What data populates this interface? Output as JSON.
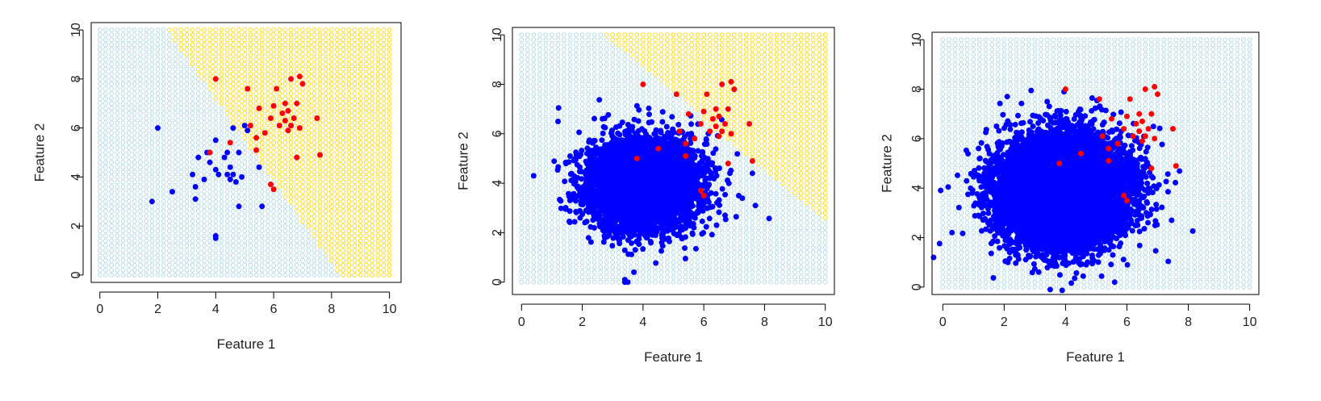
{
  "chart_data": [
    {
      "type": "scatter",
      "xlabel": "Feature 1",
      "ylabel": "Feature 2",
      "xlim": [
        0,
        10
      ],
      "ylim": [
        0,
        10
      ],
      "xticks": [
        "0",
        "2",
        "4",
        "6",
        "8",
        "10"
      ],
      "yticks": [
        "0",
        "2",
        "4",
        "6",
        "8",
        "10"
      ],
      "background_grid": {
        "x_range": [
          0,
          10
        ],
        "y_range": [
          0,
          10
        ],
        "step": 0.2,
        "light_color": "#ADD8E6",
        "dark_color": "#FFD700"
      },
      "decision_boundary": {
        "x_at_y0": 8.3,
        "x_at_y10": 2.3
      },
      "series": [
        {
          "color": "#0000FF",
          "points": [
            [
              2.0,
              6.0
            ],
            [
              1.8,
              3.0
            ],
            [
              2.5,
              3.4
            ],
            [
              3.2,
              4.1
            ],
            [
              3.3,
              3.1
            ],
            [
              3.3,
              3.6
            ],
            [
              3.4,
              4.8
            ],
            [
              3.6,
              3.9
            ],
            [
              3.7,
              5.0
            ],
            [
              3.8,
              4.6
            ],
            [
              4.0,
              5.5
            ],
            [
              4.0,
              4.3
            ],
            [
              4.1,
              4.1
            ],
            [
              4.3,
              4.8
            ],
            [
              4.4,
              4.1
            ],
            [
              4.4,
              5.0
            ],
            [
              4.5,
              3.9
            ],
            [
              4.5,
              4.4
            ],
            [
              4.6,
              4.1
            ],
            [
              4.6,
              6.0
            ],
            [
              4.7,
              3.8
            ],
            [
              4.8,
              5.0
            ],
            [
              4.8,
              2.8
            ],
            [
              4.9,
              4.0
            ],
            [
              5.0,
              6.1
            ],
            [
              5.1,
              5.9
            ],
            [
              5.5,
              4.4
            ],
            [
              5.6,
              2.8
            ],
            [
              4.0,
              1.6
            ],
            [
              4.0,
              1.5
            ]
          ]
        },
        {
          "color": "#FF0000",
          "points": [
            [
              3.8,
              5.0
            ],
            [
              4.0,
              8.0
            ],
            [
              4.5,
              5.4
            ],
            [
              5.1,
              7.6
            ],
            [
              5.2,
              6.1
            ],
            [
              5.4,
              5.6
            ],
            [
              5.4,
              5.1
            ],
            [
              5.5,
              6.8
            ],
            [
              5.7,
              5.8
            ],
            [
              5.9,
              6.4
            ],
            [
              6.0,
              6.9
            ],
            [
              6.1,
              7.6
            ],
            [
              6.2,
              6.1
            ],
            [
              6.3,
              6.6
            ],
            [
              6.4,
              6.3
            ],
            [
              6.4,
              7.0
            ],
            [
              6.5,
              6.7
            ],
            [
              6.5,
              5.9
            ],
            [
              6.6,
              6.1
            ],
            [
              6.6,
              8.0
            ],
            [
              6.7,
              6.4
            ],
            [
              6.8,
              7.0
            ],
            [
              6.9,
              6.0
            ],
            [
              6.9,
              8.1
            ],
            [
              7.0,
              7.8
            ],
            [
              7.5,
              6.4
            ],
            [
              7.6,
              4.9
            ],
            [
              6.8,
              4.8
            ],
            [
              5.9,
              3.7
            ],
            [
              6.0,
              3.5
            ]
          ]
        }
      ]
    },
    {
      "type": "scatter",
      "xlabel": "Feature 1",
      "ylabel": "Feature 2",
      "xlim": [
        0,
        10
      ],
      "ylim": [
        0,
        10
      ],
      "xticks": [
        "0",
        "2",
        "4",
        "6",
        "8",
        "10"
      ],
      "yticks": [
        "0",
        "2",
        "4",
        "6",
        "8",
        "10"
      ],
      "background_grid": {
        "x_range": [
          0,
          10
        ],
        "y_range": [
          0,
          10
        ],
        "step": 0.2,
        "light_color": "#ADD8E6",
        "dark_color": "#FFD700"
      },
      "decision_boundary": {
        "x_at_y0": 12.4,
        "x_at_y10": 2.7
      },
      "series": [
        {
          "color": "#0000FF",
          "cloud": {
            "n": 5000,
            "center": [
              4.0,
              4.0
            ],
            "sd": [
              0.9,
              0.9
            ],
            "seed": 11
          },
          "points": [
            [
              3.4,
              0.1
            ],
            [
              3.7,
              0.4
            ],
            [
              3.4,
              0.0
            ],
            [
              3.5,
              0.0
            ],
            [
              0.4,
              4.3
            ],
            [
              1.2,
              6.5
            ],
            [
              7.6,
              4.4
            ],
            [
              7.7,
              3.1
            ],
            [
              6.7,
              2.7
            ]
          ]
        },
        {
          "color": "#FF0000",
          "points": [
            [
              3.8,
              5.0
            ],
            [
              4.0,
              8.0
            ],
            [
              4.5,
              5.4
            ],
            [
              5.1,
              7.6
            ],
            [
              5.2,
              6.1
            ],
            [
              5.4,
              5.6
            ],
            [
              5.4,
              5.1
            ],
            [
              5.5,
              6.8
            ],
            [
              5.7,
              5.8
            ],
            [
              5.9,
              6.4
            ],
            [
              6.0,
              6.9
            ],
            [
              6.1,
              7.6
            ],
            [
              6.2,
              6.1
            ],
            [
              6.3,
              6.6
            ],
            [
              6.4,
              6.3
            ],
            [
              6.4,
              7.0
            ],
            [
              6.5,
              6.7
            ],
            [
              6.5,
              5.9
            ],
            [
              6.6,
              6.1
            ],
            [
              6.6,
              8.0
            ],
            [
              6.7,
              6.4
            ],
            [
              6.8,
              7.0
            ],
            [
              6.9,
              6.0
            ],
            [
              6.9,
              8.1
            ],
            [
              7.0,
              7.8
            ],
            [
              7.5,
              6.4
            ],
            [
              7.6,
              4.9
            ],
            [
              6.8,
              4.8
            ],
            [
              5.9,
              3.7
            ],
            [
              6.0,
              3.5
            ]
          ]
        }
      ]
    },
    {
      "type": "scatter",
      "xlabel": "Feature 1",
      "ylabel": "Feature 2",
      "xlim": [
        0,
        10
      ],
      "ylim": [
        0,
        10
      ],
      "xticks": [
        "0",
        "2",
        "4",
        "6",
        "8",
        "10"
      ],
      "yticks": [
        "0",
        "2",
        "4",
        "6",
        "8",
        "10"
      ],
      "background_grid": {
        "x_range": [
          0,
          10
        ],
        "y_range": [
          0,
          10
        ],
        "step": 0.2,
        "light_color": "#ADD8E6",
        "dark_color": "#FFD700"
      },
      "decision_boundary": null,
      "series": [
        {
          "color": "#0000FF",
          "cloud": {
            "n": 11000,
            "center": [
              3.9,
              3.9
            ],
            "sd": [
              1.0,
              1.05
            ],
            "seed": 23
          },
          "points": [
            [
              -0.3,
              1.2
            ],
            [
              0.3,
              2.2
            ],
            [
              3.5,
              -0.1
            ],
            [
              2.1,
              7.7
            ],
            [
              5.6,
              0.2
            ]
          ]
        },
        {
          "color": "#FF0000",
          "points": [
            [
              3.8,
              5.0
            ],
            [
              4.0,
              8.0
            ],
            [
              4.5,
              5.4
            ],
            [
              5.1,
              7.6
            ],
            [
              5.2,
              6.1
            ],
            [
              5.4,
              5.6
            ],
            [
              5.4,
              5.1
            ],
            [
              5.5,
              6.8
            ],
            [
              5.7,
              5.8
            ],
            [
              5.9,
              6.4
            ],
            [
              6.0,
              6.9
            ],
            [
              6.1,
              7.6
            ],
            [
              6.2,
              6.1
            ],
            [
              6.3,
              6.6
            ],
            [
              6.4,
              6.3
            ],
            [
              6.4,
              7.0
            ],
            [
              6.5,
              6.7
            ],
            [
              6.5,
              5.9
            ],
            [
              6.6,
              6.1
            ],
            [
              6.6,
              8.0
            ],
            [
              6.7,
              6.4
            ],
            [
              6.8,
              7.0
            ],
            [
              6.9,
              6.0
            ],
            [
              6.9,
              8.1
            ],
            [
              7.0,
              7.8
            ],
            [
              7.5,
              6.4
            ],
            [
              7.6,
              4.9
            ],
            [
              6.8,
              4.8
            ],
            [
              5.9,
              3.7
            ],
            [
              6.0,
              3.5
            ]
          ]
        }
      ]
    }
  ]
}
